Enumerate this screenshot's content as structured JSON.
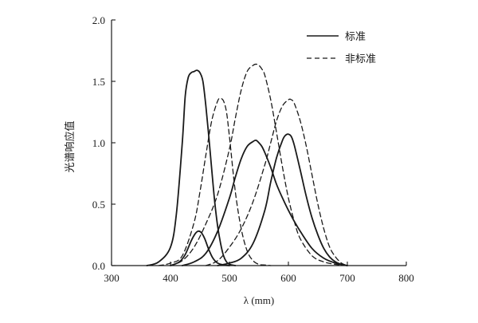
{
  "chart_data": {
    "type": "line",
    "xlabel": "λ (mm)",
    "ylabel": "光谱响应值",
    "xlim": [
      300,
      800
    ],
    "ylim": [
      0,
      2.0
    ],
    "xticks": [
      "300",
      "400",
      "500",
      "600",
      "700",
      "800"
    ],
    "yticks": [
      "0.0",
      "0.5",
      "1.0",
      "1.5",
      "2.0"
    ],
    "grid": false,
    "legend_position": "top-right",
    "legend": [
      {
        "label": "标准",
        "style": "solid"
      },
      {
        "label": "非标准",
        "style": "dashed"
      }
    ],
    "series": [
      {
        "group": "标准",
        "style": "solid",
        "x": [
          360,
          380,
          400,
          410,
          420,
          425,
          430,
          435,
          440,
          445,
          450,
          455,
          460,
          465,
          470,
          475,
          480,
          485,
          490,
          495,
          500,
          510
        ],
        "y": [
          0.0,
          0.03,
          0.15,
          0.42,
          1.0,
          1.38,
          1.53,
          1.57,
          1.58,
          1.59,
          1.57,
          1.5,
          1.3,
          1.05,
          0.78,
          0.52,
          0.32,
          0.18,
          0.08,
          0.03,
          0.01,
          0.0
        ]
      },
      {
        "group": "标准",
        "style": "solid",
        "x": [
          400,
          415,
          425,
          435,
          442,
          447,
          452,
          458,
          465,
          472,
          480,
          490,
          500
        ],
        "y": [
          0.0,
          0.03,
          0.09,
          0.2,
          0.26,
          0.28,
          0.27,
          0.22,
          0.13,
          0.06,
          0.02,
          0.005,
          0.0
        ]
      },
      {
        "group": "标准",
        "style": "solid",
        "x": [
          420,
          440,
          460,
          480,
          500,
          510,
          520,
          530,
          540,
          545,
          550,
          555,
          560,
          570,
          580,
          590,
          600,
          610,
          620,
          640,
          660,
          680,
          700
        ],
        "y": [
          0.0,
          0.03,
          0.1,
          0.28,
          0.55,
          0.72,
          0.87,
          0.97,
          1.01,
          1.02,
          1.0,
          0.97,
          0.92,
          0.8,
          0.66,
          0.55,
          0.45,
          0.36,
          0.28,
          0.14,
          0.06,
          0.02,
          0.0
        ]
      },
      {
        "group": "标准",
        "style": "solid",
        "x": [
          480,
          500,
          520,
          540,
          560,
          570,
          580,
          590,
          595,
          600,
          605,
          610,
          620,
          630,
          640,
          650,
          660,
          670,
          680,
          690,
          700
        ],
        "y": [
          0.0,
          0.02,
          0.06,
          0.18,
          0.45,
          0.68,
          0.88,
          1.02,
          1.06,
          1.07,
          1.05,
          0.98,
          0.78,
          0.57,
          0.39,
          0.25,
          0.14,
          0.07,
          0.03,
          0.01,
          0.0
        ]
      },
      {
        "group": "非标准",
        "style": "dashed",
        "x": [
          380,
          400,
          420,
          440,
          450,
          460,
          470,
          480,
          485,
          490,
          495,
          500,
          510,
          520,
          530,
          540,
          550,
          560,
          570
        ],
        "y": [
          0.0,
          0.02,
          0.08,
          0.35,
          0.6,
          0.9,
          1.18,
          1.34,
          1.36,
          1.34,
          1.25,
          1.05,
          0.6,
          0.3,
          0.12,
          0.04,
          0.01,
          0.005,
          0.0
        ]
      },
      {
        "group": "非标准",
        "style": "dashed",
        "x": [
          400,
          420,
          440,
          460,
          480,
          500,
          510,
          520,
          530,
          540,
          545,
          550,
          555,
          560,
          570,
          580,
          590,
          600,
          610,
          620,
          640,
          660,
          680,
          700
        ],
        "y": [
          0.0,
          0.04,
          0.15,
          0.34,
          0.58,
          0.95,
          1.2,
          1.43,
          1.58,
          1.63,
          1.64,
          1.63,
          1.6,
          1.55,
          1.35,
          1.08,
          0.8,
          0.55,
          0.36,
          0.22,
          0.08,
          0.03,
          0.01,
          0.0
        ]
      },
      {
        "group": "非标准",
        "style": "dashed",
        "x": [
          460,
          480,
          500,
          520,
          540,
          560,
          570,
          580,
          590,
          600,
          605,
          610,
          620,
          630,
          640,
          650,
          660,
          670,
          680,
          690,
          700
        ],
        "y": [
          0.0,
          0.04,
          0.15,
          0.3,
          0.52,
          0.82,
          1.0,
          1.18,
          1.3,
          1.35,
          1.35,
          1.32,
          1.18,
          0.98,
          0.74,
          0.5,
          0.3,
          0.15,
          0.07,
          0.02,
          0.0
        ]
      }
    ]
  }
}
